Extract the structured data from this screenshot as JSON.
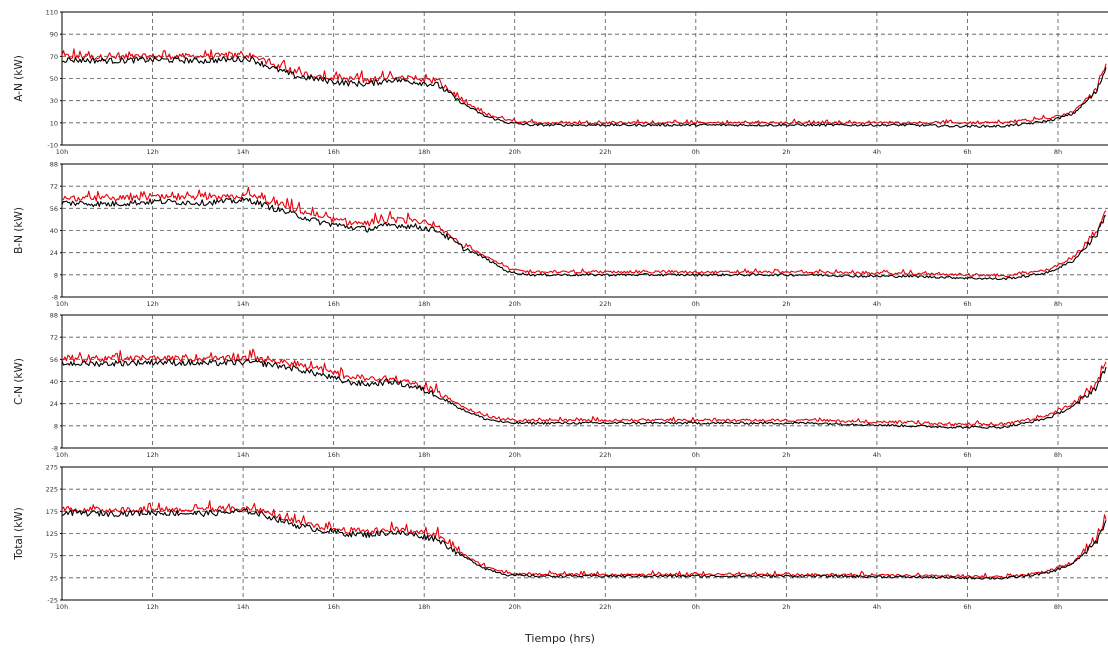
{
  "chart_data": {
    "type": "line",
    "xlabel": "Tiempo (hrs)",
    "x_ticks": [
      "10h",
      "12h",
      "14h",
      "16h",
      "18h",
      "20h",
      "22h",
      "0h",
      "2h",
      "4h",
      "6h",
      "8h"
    ],
    "x": [
      10,
      11,
      12,
      13,
      14,
      14.5,
      15,
      15.5,
      16,
      16.5,
      17,
      17.5,
      18,
      18.5,
      19,
      19.5,
      20,
      21,
      22,
      23,
      24,
      25,
      26,
      27,
      28,
      29,
      30,
      30.5,
      31,
      31.5,
      32,
      32.2
    ],
    "colors": {
      "series_1": "#e8000b",
      "series_2": "#000000"
    },
    "grid": true,
    "panels": [
      {
        "ylabel": "A-N (kW)",
        "ylim": [
          -10,
          110
        ],
        "y_ticks": [
          "110",
          "90",
          "70",
          "50",
          "30",
          "10",
          "-10"
        ],
        "series": [
          {
            "values": [
              70,
              69,
              70,
              70,
              71,
              62,
              55,
              52,
              50,
              48,
              52,
              49,
              47,
              30,
              18,
              12,
              10,
              10,
              10,
              10,
              10,
              10,
              10,
              10,
              10,
              10,
              10,
              12,
              14,
              20,
              40,
              62
            ]
          },
          {
            "values": [
              67,
              66,
              67,
              66,
              68,
              59,
              52,
              49,
              46,
              45,
              49,
              47,
              44,
              28,
              16,
              10,
              8,
              8,
              8,
              8,
              8,
              8,
              8,
              8,
              8,
              7,
              7,
              9,
              12,
              18,
              38,
              60
            ]
          }
        ]
      },
      {
        "ylabel": "B-N (kW)",
        "ylim": [
          -8,
          88
        ],
        "y_ticks": [
          "88",
          "72",
          "56",
          "40",
          "24",
          "8",
          "-8"
        ],
        "series": [
          {
            "values": [
              63,
              63,
              64,
              63,
              65,
              60,
              55,
              50,
              46,
              45,
              48,
              46,
              42,
              30,
              22,
              12,
              10,
              10,
              10,
              10,
              10,
              10,
              10,
              9,
              9,
              8,
              7,
              9,
              12,
              20,
              40,
              54
            ]
          },
          {
            "values": [
              60,
              59,
              61,
              60,
              62,
              56,
              51,
              46,
              43,
              41,
              44,
              43,
              40,
              28,
              20,
              10,
              8,
              8,
              8,
              8,
              8,
              8,
              8,
              7,
              7,
              6,
              5,
              7,
              10,
              18,
              37,
              52
            ]
          }
        ]
      },
      {
        "ylabel": "C-N (kW)",
        "ylim": [
          -8,
          88
        ],
        "y_ticks": [
          "88",
          "72",
          "56",
          "40",
          "24",
          "8",
          "-8"
        ],
        "series": [
          {
            "values": [
              56,
              56,
              57,
              56,
              57,
              55,
              52,
              48,
              44,
              42,
              42,
              38,
              32,
              22,
              15,
              12,
              12,
              12,
              12,
              12,
              12,
              12,
              12,
              11,
              10,
              9,
              9,
              12,
              16,
              24,
              38,
              52
            ]
          },
          {
            "values": [
              53,
              53,
              54,
              53,
              54,
              52,
              49,
              45,
              40,
              38,
              40,
              36,
              30,
              20,
              13,
              10,
              10,
              10,
              10,
              10,
              10,
              10,
              10,
              9,
              8,
              7,
              7,
              10,
              14,
              22,
              36,
              50
            ]
          }
        ]
      },
      {
        "ylabel": "Total (kW)",
        "ylim": [
          -25,
          275
        ],
        "y_ticks": [
          "275",
          "225",
          "175",
          "125",
          "75",
          "25",
          "-25"
        ],
        "series": [
          {
            "values": [
              180,
              178,
              180,
              178,
              182,
              168,
              150,
              140,
              133,
              130,
              135,
              128,
              118,
              80,
              50,
              35,
              33,
              32,
              32,
              32,
              32,
              32,
              32,
              31,
              30,
              28,
              27,
              32,
              40,
              60,
              110,
              158
            ]
          },
          {
            "values": [
              172,
              170,
              172,
              170,
              175,
              160,
              143,
              133,
              125,
              122,
              128,
              122,
              112,
              75,
              46,
              31,
              29,
              29,
              29,
              29,
              29,
              29,
              29,
              28,
              27,
              25,
              24,
              29,
              37,
              57,
              106,
              154
            ]
          }
        ]
      }
    ]
  }
}
